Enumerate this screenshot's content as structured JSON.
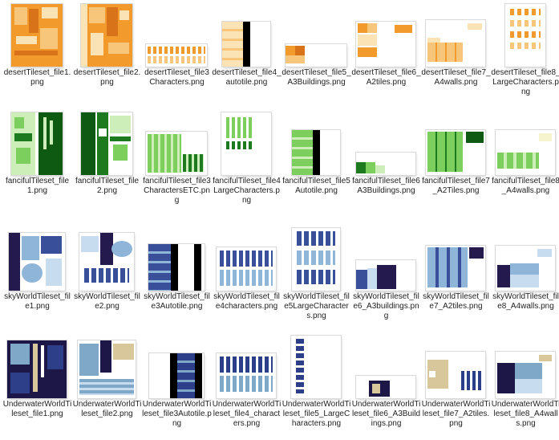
{
  "rows": [
    {
      "items": [
        {
          "label": "desertTileset_file1.png"
        },
        {
          "label": "desertTileset_file2.png"
        },
        {
          "label": "desertTileset_file3Characters.png"
        },
        {
          "label": "desertTileset_file4_autotile.png"
        },
        {
          "label": "desertTileset_file5_A3Buildings.png"
        },
        {
          "label": "desertTileset_file6_A2tiles.png"
        },
        {
          "label": "desertTileset_file7_A4walls.png"
        },
        {
          "label": "desertTileset_file8_LargeCharacters.png"
        }
      ]
    },
    {
      "items": [
        {
          "label": "fancifulTileset_file1.png"
        },
        {
          "label": "fancifulTileset_file2.png"
        },
        {
          "label": "fancifulTileset_file3CharactersETC.png"
        },
        {
          "label": "fancifulTileset_file4LargeCharacters.png"
        },
        {
          "label": "fancifulTileset_file5Autotile.png"
        },
        {
          "label": "fancifulTileset_file6A3Buildings.png"
        },
        {
          "label": "fancifulTileset_file7_A2Tiles.png"
        },
        {
          "label": "fancifulTileset_file8_A4walls.png"
        }
      ]
    },
    {
      "items": [
        {
          "label": "skyWorldTileset_file1.png"
        },
        {
          "label": "skyWorldTileset_file2.png"
        },
        {
          "label": "skyWorldTileset_file3Autotile.png"
        },
        {
          "label": "skyWorldTileset_file4characters.png"
        },
        {
          "label": "skyWorldTileset_file5LargeCharacters.png"
        },
        {
          "label": "skyWorldTileset_file6_A3buildings.png"
        },
        {
          "label": "skyWorldTileset_file7_A2tiles.png"
        },
        {
          "label": "skyWorldTileset_file8_A4walls.png"
        }
      ]
    },
    {
      "items": [
        {
          "label": "UnderwaterWorldTileset_file1.png"
        },
        {
          "label": "UnderwaterWorldTileset_file2.png"
        },
        {
          "label": "UnderwaterWorldTileset_file3Autotile.png"
        },
        {
          "label": "UnderwaterWorldTileset_file4_characters.png"
        },
        {
          "label": "UnderwaterWorldTileset_file5_LargeCharacters.png"
        },
        {
          "label": "UnderwaterWorldTileset_file6_A3Buildings.png"
        },
        {
          "label": "UnderwaterWorldTileset_file7_A2tiles.png"
        },
        {
          "label": "UnderwaterWorldTileset_file8_A4walls.png"
        }
      ]
    }
  ],
  "palettes": {
    "desert": {
      "main": "#f39a2c",
      "dark": "#d8731a",
      "light": "#f8c67a",
      "pale": "#fbe3b6"
    },
    "fanciful": {
      "main": "#1e7a1e",
      "dark": "#0e5a12",
      "light": "#7ccf5c",
      "pale": "#cdeeb8"
    },
    "sky": {
      "main": "#3a4f9a",
      "dark": "#241a4e",
      "light": "#8fb6d8",
      "pale": "#c8dcf0"
    },
    "underwater": {
      "main": "#2d3f88",
      "dark": "#1d1748",
      "light": "#7fa8c8",
      "pale": "#d8c79a"
    }
  }
}
